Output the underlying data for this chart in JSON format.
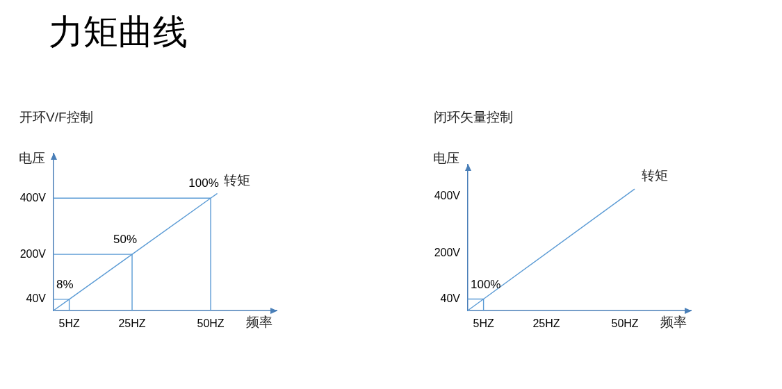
{
  "chart_data": [
    {
      "type": "line",
      "title": "力矩曲线",
      "subtitle": "开环V/F控制",
      "xlabel": "频率",
      "ylabel": "电压",
      "xlim": [
        0,
        71
      ],
      "ylim": [
        0,
        560
      ],
      "xticks": [
        {
          "value": 5,
          "label": "5HZ"
        },
        {
          "value": 25,
          "label": "25HZ"
        },
        {
          "value": 50,
          "label": "50HZ"
        }
      ],
      "yticks": [
        {
          "value": 40,
          "label": "40V"
        },
        {
          "value": 200,
          "label": "200V"
        },
        {
          "value": 400,
          "label": "400V"
        }
      ],
      "marker": "none",
      "series": [
        {
          "name": "转矩",
          "color": "#5b9bd5",
          "x": [
            0,
            5,
            25,
            50,
            52
          ],
          "values": [
            0,
            40,
            200,
            400,
            416
          ]
        },
        {
          "color": "#5b9bd5",
          "x": [
            0,
            5,
            5
          ],
          "values": [
            40,
            40,
            0
          ]
        },
        {
          "color": "#5b9bd5",
          "x": [
            0,
            25,
            25
          ],
          "values": [
            200,
            200,
            0
          ]
        },
        {
          "color": "#5b9bd5",
          "x": [
            0,
            50,
            50
          ],
          "values": [
            400,
            400,
            0
          ]
        }
      ],
      "annotations": [
        {
          "text": "8%",
          "x": 5,
          "y": 40
        },
        {
          "text": "50%",
          "x": 25,
          "y": 200
        },
        {
          "text": "100%",
          "x": 50,
          "y": 400
        }
      ]
    },
    {
      "type": "line",
      "subtitle": "闭环矢量控制",
      "xlabel": "频率",
      "ylabel": "电压",
      "xlim": [
        0,
        71
      ],
      "ylim": [
        0,
        510
      ],
      "xticks": [
        {
          "value": 5,
          "label": "5HZ"
        },
        {
          "value": 25,
          "label": "25HZ"
        },
        {
          "value": 50,
          "label": "50HZ"
        }
      ],
      "yticks": [
        {
          "value": 40,
          "label": "40V"
        },
        {
          "value": 200,
          "label": "200V"
        },
        {
          "value": 400,
          "label": "400V"
        }
      ],
      "marker": "none",
      "series": [
        {
          "name": "转矩",
          "color": "#5b9bd5",
          "x": [
            0,
            5,
            53
          ],
          "values": [
            0,
            40,
            424
          ]
        },
        {
          "color": "#5b9bd5",
          "x": [
            0,
            5,
            5
          ],
          "values": [
            40,
            40,
            0
          ]
        }
      ],
      "annotations": [
        {
          "text": "100%",
          "x": 5,
          "y": 40
        }
      ]
    }
  ]
}
